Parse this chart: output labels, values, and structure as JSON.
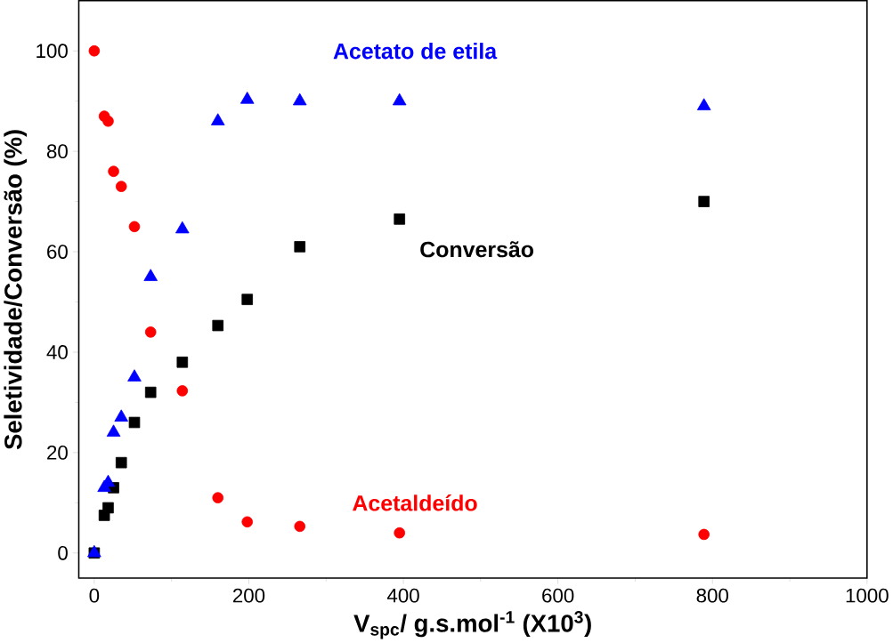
{
  "chart_data": {
    "type": "scatter",
    "xlabel": "V$_{spc}$/ g.s.mol$^{-1}$ (X10$^{3}$)",
    "ylabel": "Seletividade/Conversão (%)",
    "x": [
      0,
      13,
      18,
      25,
      35,
      52,
      73,
      114,
      160,
      198,
      266,
      395,
      789
    ],
    "series": [
      {
        "name": "Conversão",
        "color": "#000000",
        "marker": "square",
        "values": [
          0,
          7.5,
          9,
          13,
          18,
          26,
          32,
          38,
          45.3,
          50.5,
          61,
          66.5,
          70
        ]
      },
      {
        "name": "Acetato de etila",
        "color": "#0000ff",
        "marker": "triangle",
        "values": [
          0,
          13,
          14,
          24,
          27,
          35,
          55,
          64.5,
          86,
          90.3,
          90,
          90,
          89
        ]
      },
      {
        "name": "Acetaldeído",
        "color": "#ff0000",
        "marker": "circle",
        "values": [
          100,
          87,
          86,
          76,
          73,
          65,
          44,
          32.3,
          11,
          6.2,
          5.3,
          4,
          3.7
        ]
      }
    ],
    "xlim": [
      -20,
      1000
    ],
    "ylim": [
      -5,
      110
    ],
    "xticks": [
      0,
      200,
      400,
      600,
      800,
      1000
    ],
    "yticks": [
      0,
      20,
      40,
      60,
      80,
      100
    ]
  }
}
